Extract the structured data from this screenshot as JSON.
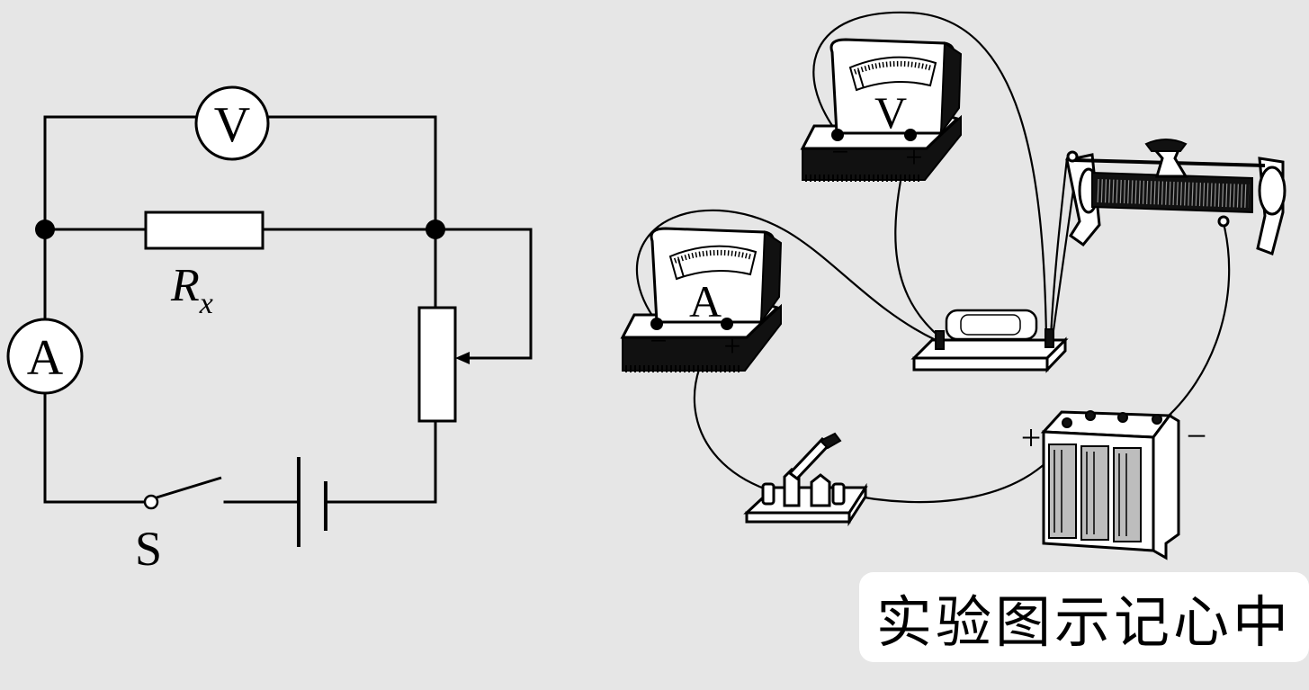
{
  "schematic": {
    "voltmeter_label": "V",
    "ammeter_label": "A",
    "resistor_label": "R",
    "resistor_subscript": "x",
    "switch_label": "S"
  },
  "apparatus": {
    "voltmeter_label": "V",
    "ammeter_label": "A",
    "minus_sign": "−",
    "plus_sign": "+",
    "battery_plus": "+",
    "battery_minus": "−"
  },
  "caption": "实验图示记心中",
  "colors": {
    "background": "#e6e6e6",
    "caption_background": "#ffffff",
    "ink": "#000000"
  }
}
